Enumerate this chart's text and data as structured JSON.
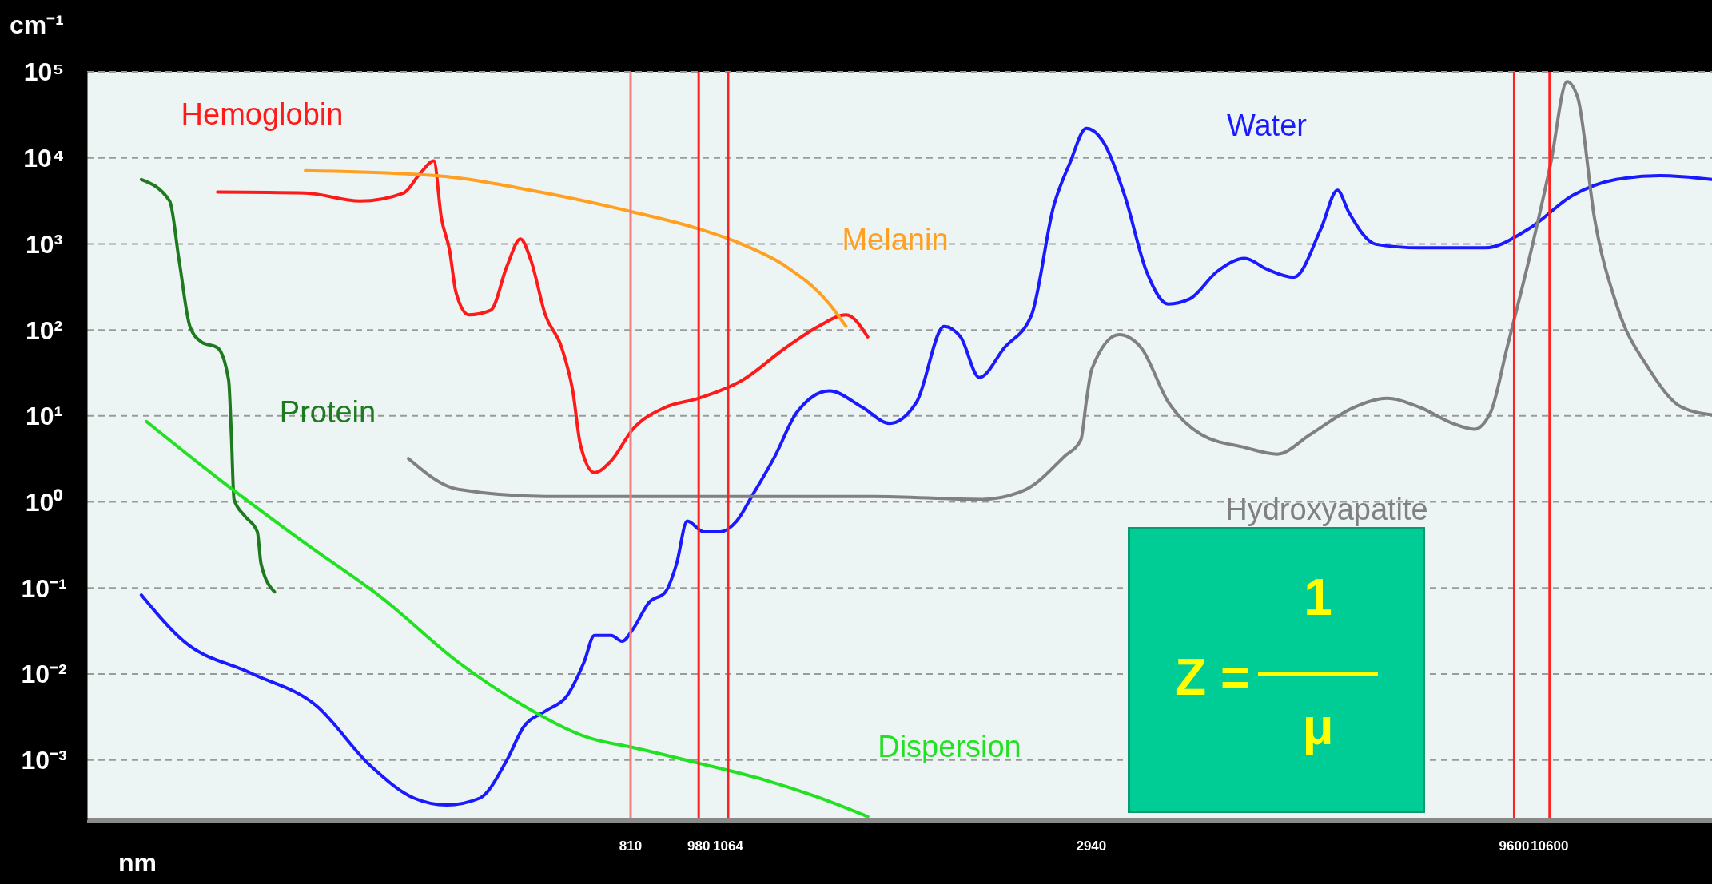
{
  "chart_data": {
    "type": "line",
    "ylabel": "cm⁻¹",
    "xlabel": "nm",
    "log": "xy",
    "grid": "y",
    "xlim": [
      177,
      16700
    ],
    "xticks": [
      810,
      980,
      1064,
      2940,
      9600,
      10600
    ],
    "ylim": [
      0.0002,
      100000
    ],
    "yticks": [
      {
        "value": 0.001,
        "label": "10⁻³"
      },
      {
        "value": 0.01,
        "label": "10⁻²"
      },
      {
        "value": 0.1,
        "label": "10⁻¹"
      },
      {
        "value": 1,
        "label": "10⁰"
      },
      {
        "value": 10,
        "label": "10¹"
      },
      {
        "value": 100,
        "label": "10²"
      },
      {
        "value": 1000,
        "label": "10³"
      },
      {
        "value": 10000,
        "label": "10⁴"
      },
      {
        "value": 100000,
        "label": "10⁵"
      }
    ],
    "series": [
      {
        "name": "Hemoglobin",
        "color": "#ff1a1a",
        "x": [
          255,
          326,
          380,
          429,
          449,
          467,
          477,
          488,
          497,
          515,
          548,
          573,
          595,
          613,
          638,
          668,
          689,
          704,
          732,
          767,
          815,
          893,
          979,
          1107,
          1250,
          1370,
          1480,
          1573
        ],
        "values": [
          4000,
          3900,
          3150,
          3900,
          6500,
          9200,
          2000,
          850,
          270,
          150,
          170,
          550,
          1140,
          640,
          150,
          62,
          19.5,
          4.6,
          2.2,
          3.0,
          7,
          12.6,
          16,
          26,
          62,
          110,
          150,
          83
        ]
      },
      {
        "name": "Melanin",
        "color": "#ffa020",
        "x": [
          326,
          470,
          638,
          815,
          979,
          1107,
          1250,
          1413,
          1480
        ],
        "values": [
          7100,
          6200,
          3900,
          2350,
          1500,
          990,
          550,
          200,
          110
        ]
      },
      {
        "name": "Protein",
        "color": "#1e7a1e",
        "x": [
          206,
          223,
          229,
          236,
          244,
          255,
          263,
          265,
          267,
          275,
          285,
          288,
          299
        ],
        "values": [
          5600,
          3150,
          640,
          110,
          72,
          62,
          26,
          6.1,
          1.07,
          0.69,
          0.45,
          0.19,
          0.09
        ]
      },
      {
        "name": "Water",
        "color": "#1a1aff",
        "x": [
          206,
          232,
          280,
          336,
          391,
          442,
          484,
          531,
          573,
          600,
          638,
          679,
          711,
          732,
          767,
          791,
          815,
          853,
          893,
          921,
          949,
          994,
          1041,
          1090,
          1141,
          1213,
          1289,
          1413,
          1549,
          1672,
          1804,
          1947,
          2039,
          2149,
          2305,
          2488,
          2645,
          2769,
          2899,
          3037,
          3228,
          3431,
          3645,
          3876,
          4183,
          4517,
          4802,
          5182,
          5591,
          5855,
          6041,
          6520,
          7368,
          8852,
          10000,
          11306,
          12776,
          14438,
          16700
        ],
        "values": [
          0.083,
          0.024,
          0.0102,
          0.0043,
          0.00086,
          0.00036,
          0.0003,
          0.00036,
          0.001,
          0.0024,
          0.0037,
          0.0057,
          0.0137,
          0.028,
          0.028,
          0.024,
          0.033,
          0.068,
          0.09,
          0.19,
          0.6,
          0.45,
          0.45,
          0.6,
          1.23,
          3.4,
          10.9,
          19.5,
          12.6,
          8.2,
          14.6,
          110,
          83,
          28,
          62,
          150,
          2700,
          8700,
          22000,
          15600,
          3650,
          480,
          200,
          230,
          480,
          680,
          510,
          410,
          1500,
          4200,
          2350,
          990,
          900,
          900,
          1500,
          3650,
          5600,
          6200,
          5600
        ]
      },
      {
        "name": "Hydroxyapatite",
        "color": "#808080",
        "x": [
          435,
          500,
          638,
          1009,
          1596,
          2168,
          2450,
          2728,
          2856,
          2899,
          2944,
          3178,
          3380,
          3645,
          3997,
          4517,
          4948,
          5427,
          6133,
          6722,
          7368,
          8077,
          8582,
          8984,
          9410,
          10000,
          10635,
          11130,
          11470,
          12019,
          12776,
          14006,
          15349,
          16700
        ],
        "values": [
          3.2,
          1.4,
          1.16,
          1.16,
          1.16,
          1.07,
          1.4,
          3.4,
          5.3,
          14.6,
          35,
          88,
          62,
          14.6,
          6.1,
          4.3,
          3.6,
          6.1,
          12.6,
          16,
          12.6,
          8.2,
          7,
          10.9,
          62,
          640,
          8700,
          77000,
          50000,
          2000,
          200,
          35,
          12.6,
          10.3
        ]
      },
      {
        "name": "Dispersion",
        "color": "#22e022",
        "x": [
          209,
          255,
          326,
          403,
          500,
          600,
          722,
          815,
          979,
          1176,
          1413,
          1573
        ],
        "values": [
          8.6,
          1.9,
          0.33,
          0.078,
          0.0137,
          0.0043,
          0.0018,
          0.0014,
          0.00092,
          0.00059,
          0.00033,
          0.00022
        ]
      }
    ],
    "ref_lines": [
      {
        "axis": "x",
        "value": 810,
        "color": "#f08080"
      },
      {
        "axis": "x",
        "value": 980,
        "color": "#ff2020"
      },
      {
        "axis": "x",
        "value": 1064,
        "color": "#ff2020"
      },
      {
        "axis": "x",
        "value": 9600,
        "color": "#ff2020"
      },
      {
        "axis": "x",
        "value": 10600,
        "color": "#ff2020"
      }
    ],
    "annotations": [
      "Z =",
      "1",
      "μ"
    ]
  }
}
